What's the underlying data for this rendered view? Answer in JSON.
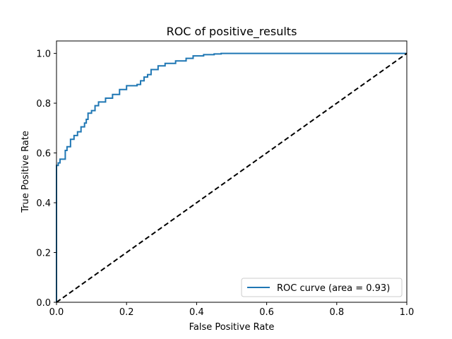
{
  "chart_data": {
    "type": "line",
    "title": "ROC of positive_results",
    "xlabel": "False Positive Rate",
    "ylabel": "True Positive Rate",
    "xlim": [
      0.0,
      1.0
    ],
    "ylim": [
      0.0,
      1.05
    ],
    "xticks": [
      0.0,
      0.2,
      0.4,
      0.6,
      0.8,
      1.0
    ],
    "yticks": [
      0.0,
      0.2,
      0.4,
      0.6,
      0.8,
      1.0
    ],
    "xtick_labels": [
      "0.0",
      "0.2",
      "0.4",
      "0.6",
      "0.8",
      "1.0"
    ],
    "ytick_labels": [
      "0.0",
      "0.2",
      "0.4",
      "0.6",
      "0.8",
      "1.0"
    ],
    "grid": false,
    "legend": {
      "placement": "lower-right",
      "entries": [
        "ROC curve (area = 0.93)"
      ]
    },
    "series": [
      {
        "name": "ROC curve (area = 0.93)",
        "color": "#1f77b4",
        "style": "solid",
        "step": true,
        "x": [
          0.0,
          0.0,
          0.005,
          0.005,
          0.01,
          0.01,
          0.025,
          0.025,
          0.03,
          0.03,
          0.04,
          0.04,
          0.05,
          0.05,
          0.06,
          0.06,
          0.07,
          0.07,
          0.08,
          0.08,
          0.085,
          0.085,
          0.09,
          0.09,
          0.1,
          0.1,
          0.11,
          0.11,
          0.12,
          0.12,
          0.14,
          0.14,
          0.16,
          0.16,
          0.18,
          0.18,
          0.2,
          0.2,
          0.23,
          0.23,
          0.24,
          0.24,
          0.25,
          0.25,
          0.26,
          0.26,
          0.27,
          0.27,
          0.29,
          0.29,
          0.31,
          0.31,
          0.34,
          0.34,
          0.37,
          0.37,
          0.39,
          0.39,
          0.42,
          0.42,
          0.45,
          0.45,
          0.47,
          0.47,
          1.0
        ],
        "y": [
          0.0,
          0.55,
          0.55,
          0.56,
          0.56,
          0.575,
          0.575,
          0.61,
          0.61,
          0.625,
          0.625,
          0.655,
          0.655,
          0.67,
          0.67,
          0.685,
          0.685,
          0.705,
          0.705,
          0.72,
          0.72,
          0.735,
          0.735,
          0.76,
          0.76,
          0.77,
          0.77,
          0.79,
          0.79,
          0.805,
          0.805,
          0.82,
          0.82,
          0.835,
          0.835,
          0.855,
          0.855,
          0.87,
          0.87,
          0.875,
          0.875,
          0.89,
          0.89,
          0.905,
          0.905,
          0.915,
          0.915,
          0.935,
          0.935,
          0.95,
          0.95,
          0.96,
          0.96,
          0.97,
          0.97,
          0.98,
          0.98,
          0.99,
          0.99,
          0.995,
          0.995,
          0.998,
          0.998,
          1.0,
          1.0
        ]
      },
      {
        "name": "",
        "color": "#000000",
        "style": "dashed",
        "step": false,
        "x": [
          0.0,
          1.0
        ],
        "y": [
          0.0,
          1.0
        ]
      }
    ]
  }
}
